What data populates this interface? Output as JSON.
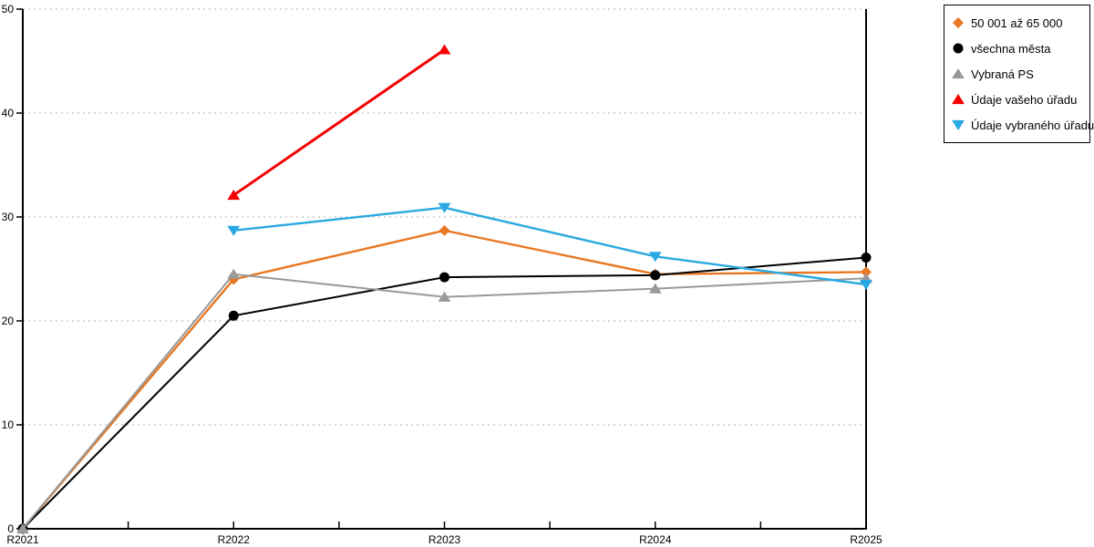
{
  "chart_data": {
    "type": "line",
    "title": "",
    "xlabel": "",
    "ylabel": "",
    "categories": [
      "R2021",
      "R2022",
      "R2023",
      "R2024",
      "R2025"
    ],
    "ylim": [
      0,
      50
    ],
    "yticks": [
      0,
      10,
      20,
      30,
      40,
      50
    ],
    "grid": "horizontal-dotted",
    "x_minor_ticks_between_categories": true,
    "legend_position": "top-right-outside",
    "series": [
      {
        "name": "50 001 až 65 000",
        "marker": "diamond",
        "color": "#E87722",
        "line_width": 2.4,
        "values": [
          0,
          24.0,
          28.7,
          24.5,
          24.7
        ]
      },
      {
        "name": "všechna města",
        "marker": "circle",
        "color": "#000000",
        "line_width": 2.0,
        "values": [
          0,
          20.5,
          24.2,
          24.4,
          26.1
        ]
      },
      {
        "name": "Vybraná PS",
        "marker": "triangle-up",
        "color": "#999999",
        "line_width": 2.0,
        "values": [
          0,
          24.5,
          22.3,
          23.1,
          24.1
        ]
      },
      {
        "name": "Údaje vašeho úřadu",
        "marker": "triangle-up",
        "color": "#F40000",
        "line_width": 3.0,
        "values": [
          null,
          32.1,
          46.1,
          null,
          null
        ]
      },
      {
        "name": "Údaje vybraného úřadu",
        "marker": "triangle-down",
        "color": "#29A9E1",
        "line_width": 2.4,
        "values": [
          null,
          28.7,
          30.9,
          26.2,
          23.5
        ]
      }
    ]
  },
  "colors": {
    "background": "#FFFFFF",
    "axis": "#000000",
    "grid": "#C0C0C0",
    "tick_label": "#000000",
    "legend_border": "#000000"
  }
}
